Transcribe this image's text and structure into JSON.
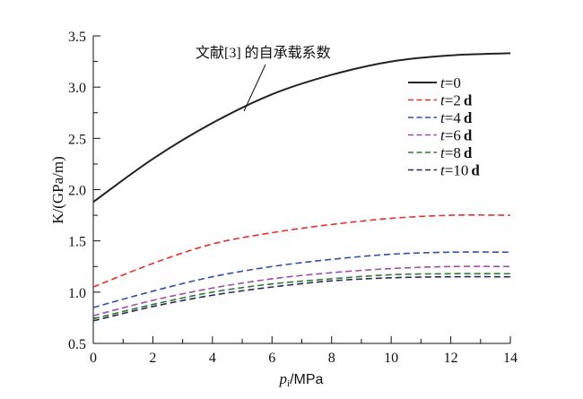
{
  "chart_data": {
    "type": "line",
    "title": "",
    "xlabel": "p_i/MPa",
    "xlabel_main": "p",
    "xlabel_sub": "i",
    "xlabel_rest": "/MPa",
    "ylabel": "K/(GPa/m)",
    "xlim": [
      0,
      14
    ],
    "ylim": [
      0.5,
      3.5
    ],
    "x_ticks": [
      "0",
      "2",
      "4",
      "6",
      "8",
      "10",
      "12",
      "14"
    ],
    "y_ticks": [
      "0.5",
      "1.0",
      "1.5",
      "2.0",
      "2.5",
      "3.0",
      "3.5"
    ],
    "grid": false,
    "legend_position": "top-right",
    "annotation": "文献[3] 的自承载系数",
    "x": [
      0,
      2,
      4,
      6,
      8,
      10,
      12,
      14
    ],
    "series": [
      {
        "name": "t=0",
        "var": "t",
        "eq": "=0",
        "unit": "",
        "color": "#222222",
        "dash": false,
        "values": [
          1.88,
          2.3,
          2.65,
          2.93,
          3.12,
          3.25,
          3.31,
          3.33
        ]
      },
      {
        "name": "t=2 d",
        "var": "t",
        "eq": "=2",
        "unit": "d",
        "color": "#e8302a",
        "dash": true,
        "values": [
          1.05,
          1.28,
          1.47,
          1.58,
          1.66,
          1.72,
          1.75,
          1.75
        ]
      },
      {
        "name": "t=4 d",
        "var": "t",
        "eq": "=4",
        "unit": "d",
        "color": "#2f4fa8",
        "dash": true,
        "values": [
          0.85,
          1.01,
          1.15,
          1.25,
          1.32,
          1.37,
          1.39,
          1.39
        ]
      },
      {
        "name": "t=6 d",
        "var": "t",
        "eq": "=6",
        "unit": "d",
        "color": "#a04aa8",
        "dash": true,
        "values": [
          0.77,
          0.92,
          1.04,
          1.13,
          1.19,
          1.23,
          1.25,
          1.25
        ]
      },
      {
        "name": "t=8 d",
        "var": "t",
        "eq": "=8",
        "unit": "d",
        "color": "#2f7a35",
        "dash": true,
        "values": [
          0.74,
          0.88,
          1.0,
          1.08,
          1.13,
          1.17,
          1.18,
          1.18
        ]
      },
      {
        "name": "t=10 d",
        "var": "t",
        "eq": "=10",
        "unit": "d",
        "color": "#2a2a5a",
        "dash": true,
        "values": [
          0.72,
          0.86,
          0.97,
          1.05,
          1.11,
          1.14,
          1.15,
          1.15
        ]
      }
    ]
  }
}
